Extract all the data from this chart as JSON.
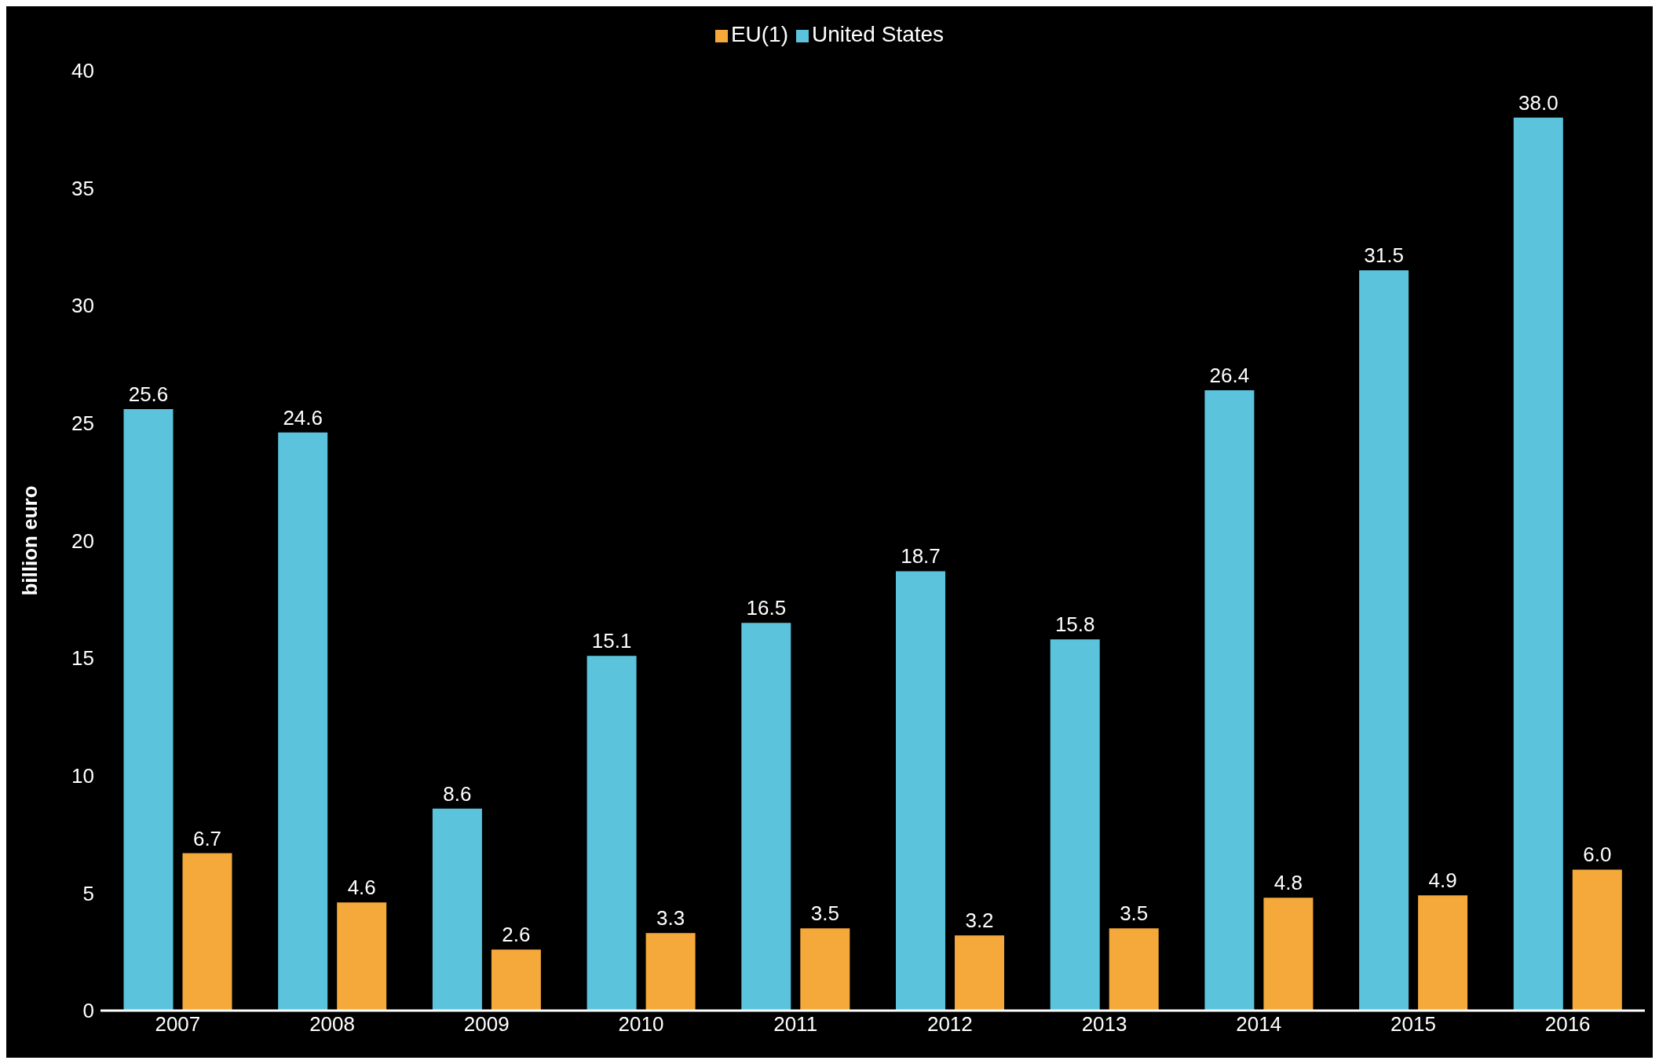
{
  "chart_data": {
    "type": "bar",
    "ylabel": "billion euro",
    "categories": [
      "2007",
      "2008",
      "2009",
      "2010",
      "2011",
      "2012",
      "2013",
      "2014",
      "2015",
      "2016"
    ],
    "series": [
      {
        "name": "United States",
        "color": "#5bc4dc",
        "values": [
          25.6,
          24.6,
          8.6,
          15.1,
          16.5,
          18.7,
          15.8,
          26.4,
          31.5,
          38.0
        ],
        "value_labels": [
          "25.6",
          "24.6",
          "8.6",
          "15.1",
          "16.5",
          "18.7",
          "15.8",
          "26.4",
          "31.5",
          "38.0"
        ]
      },
      {
        "name": "EU(1)",
        "color": "#f4a93a",
        "values": [
          6.7,
          4.6,
          2.6,
          3.3,
          3.5,
          3.2,
          3.5,
          4.8,
          4.9,
          6.0
        ],
        "value_labels": [
          "6.7",
          "4.6",
          "2.6",
          "3.3",
          "3.5",
          "3.2",
          "3.5",
          "4.8",
          "4.9",
          "6.0"
        ]
      }
    ],
    "ylim": [
      0,
      40
    ],
    "yticks": [
      0,
      5,
      10,
      15,
      20,
      25,
      30,
      35,
      40
    ],
    "grid": false,
    "legend": "top"
  }
}
